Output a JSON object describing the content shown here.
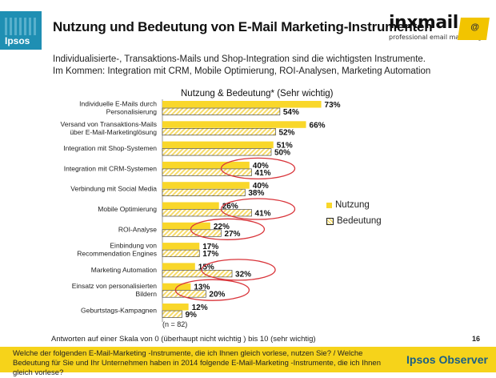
{
  "header": {
    "logo_text": "Ipsos",
    "title": "Nutzung und Bedeutung von E-Mail Marketing-Instrumenten",
    "partner_logo": "inxmail",
    "partner_tagline": "professional email marketing"
  },
  "subtitle_line1": "Individualisierte-, Transaktions-Mails und Shop-Integration sind die wichtigsten Instrumente.",
  "subtitle_line2": "Im Kommen: Integration mit CRM, Mobile Optimierung, ROI-Analysen, Marketing Automation",
  "chart_data": {
    "type": "bar",
    "orientation": "horizontal",
    "title": "Nutzung & Bedeutung* (Sehr wichtig)",
    "categories": [
      [
        "Individuelle E-Mails durch",
        "Personalisierung"
      ],
      [
        "Versand von Transaktions-Mails",
        "über E-Mail-Marketinglösung"
      ],
      [
        "Integration mit Shop-Systemen"
      ],
      [
        "Integration mit CRM-Systemen"
      ],
      [
        "Verbindung mit Social Media"
      ],
      [
        "Mobile Optimierung"
      ],
      [
        "ROI-Analyse"
      ],
      [
        "Einbindung von",
        "Recommendation Engines"
      ],
      [
        "Marketing Automation"
      ],
      [
        "Einsatz von personalisierten",
        "Bildern"
      ],
      [
        "Geburtstags-Kampagnen"
      ]
    ],
    "series": [
      {
        "name": "Nutzung",
        "values": [
          73,
          66,
          51,
          40,
          40,
          26,
          22,
          17,
          15,
          13,
          12
        ],
        "color": "#f9d72a",
        "pattern": "solid"
      },
      {
        "name": "Bedeutung",
        "values": [
          54,
          52,
          50,
          41,
          38,
          41,
          27,
          17,
          32,
          20,
          9
        ],
        "color": "#f5da6a",
        "pattern": "hatched"
      }
    ],
    "value_suffix": "%",
    "highlighted_categories": [
      3,
      5,
      6,
      8,
      9
    ],
    "highlight_color": "#d9343a",
    "legend_position": "right"
  },
  "n_note": "(n = 82)",
  "scale_note": "Antworten auf einer Skala von 0 (überhaupt nicht wichtig ) bis 10 (sehr wichtig)",
  "page_number": "16",
  "footer": {
    "question": "Welche der folgenden E-Mail-Marketing -Instrumente, die ich Ihnen gleich vorlese, nutzen Sie? / Welche Bedeutung für Sie und Ihr Unternehmen haben in 2014 folgende E-Mail-Marketing -Instrumente, die ich Ihnen gleich vorlese?",
    "brand": "Ipsos Observer"
  }
}
